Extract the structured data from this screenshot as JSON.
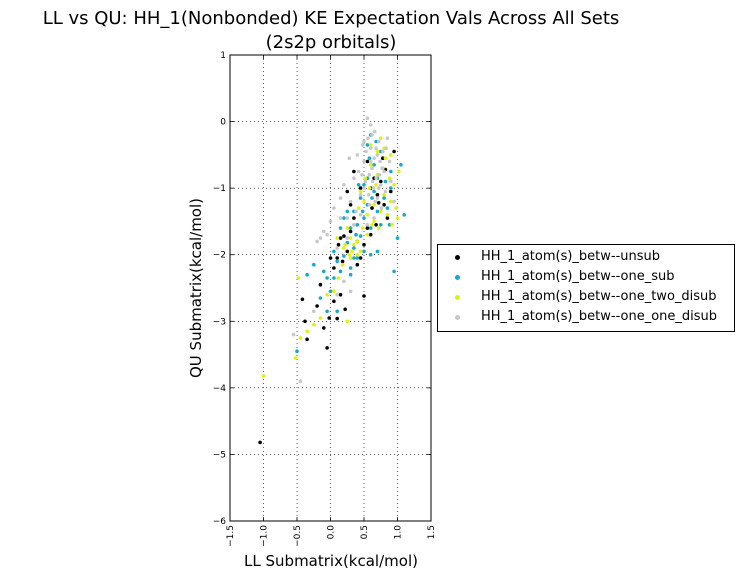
{
  "chart_data": {
    "type": "scatter",
    "title": "LL vs QU: HH_1(Nonbonded) KE Expectation Vals Across All Sets",
    "subtitle": "(2s2p orbitals)",
    "xlabel": "LL Submatrix(kcal/mol)",
    "ylabel": "QU Submatrix(kcal/mol)",
    "xlim": [
      -1.5,
      1.5
    ],
    "ylim": [
      -6,
      1
    ],
    "xticks": [
      -1.5,
      -1.0,
      -0.5,
      0.0,
      0.5,
      1.0,
      1.5
    ],
    "xtick_labels": [
      "−1.5",
      "−1.0",
      "−0.5",
      "0.0",
      "0.5",
      "1.0",
      "1.5"
    ],
    "yticks": [
      1,
      0,
      -1,
      -2,
      -3,
      -4,
      -5,
      -6
    ],
    "ytick_labels": [
      "1",
      "0",
      "−1",
      "−2",
      "−3",
      "−4",
      "−5",
      "−6"
    ],
    "grid": true,
    "grid_style": "dotted",
    "legend_position": "right-outside",
    "series": [
      {
        "name": "HH_1_atom(s)_betw--unsub",
        "color": "#000000",
        "points": [
          [
            -1.05,
            -4.82
          ],
          [
            -0.42,
            -2.67
          ],
          [
            -0.35,
            -3.27
          ],
          [
            -0.38,
            -3.0
          ],
          [
            -0.2,
            -2.77
          ],
          [
            -0.05,
            -3.4
          ],
          [
            -0.1,
            -3.1
          ],
          [
            -0.02,
            -2.95
          ],
          [
            0.05,
            -2.7
          ],
          [
            0.1,
            -2.96
          ],
          [
            0.15,
            -2.6
          ],
          [
            0.22,
            -2.82
          ],
          [
            0.5,
            -2.62
          ],
          [
            -0.15,
            -2.45
          ],
          [
            0.0,
            -2.05
          ],
          [
            0.05,
            -2.2
          ],
          [
            0.1,
            -2.05
          ],
          [
            0.15,
            -1.75
          ],
          [
            0.2,
            -1.72
          ],
          [
            0.25,
            -1.95
          ],
          [
            0.3,
            -1.65
          ],
          [
            0.35,
            -1.45
          ],
          [
            0.4,
            -1.8
          ],
          [
            0.45,
            -2.05
          ],
          [
            0.5,
            -1.85
          ],
          [
            0.55,
            -1.6
          ],
          [
            0.6,
            -1.7
          ],
          [
            0.62,
            -1.3
          ],
          [
            0.68,
            -1.55
          ],
          [
            0.7,
            -1.1
          ],
          [
            0.72,
            -1.22
          ],
          [
            0.75,
            -0.9
          ],
          [
            0.8,
            -1.25
          ],
          [
            0.82,
            -0.72
          ],
          [
            0.85,
            -1.45
          ],
          [
            0.9,
            -1.05
          ],
          [
            0.95,
            -0.45
          ],
          [
            0.3,
            -1.25
          ],
          [
            0.35,
            -0.75
          ],
          [
            0.45,
            -1.0
          ],
          [
            0.55,
            -0.6
          ],
          [
            0.6,
            -1.0
          ],
          [
            0.65,
            -0.85
          ],
          [
            0.25,
            -1.05
          ],
          [
            0.4,
            -2.15
          ],
          [
            0.18,
            -2.1
          ],
          [
            0.12,
            -1.85
          ],
          [
            0.78,
            -0.55
          ]
        ]
      },
      {
        "name": "HH_1_atom(s)_betw--one_sub",
        "color": "#17a9c9",
        "points": [
          [
            -0.5,
            -3.45
          ],
          [
            -0.35,
            -2.3
          ],
          [
            -0.25,
            -2.15
          ],
          [
            -0.1,
            -2.25
          ],
          [
            -0.05,
            -2.85
          ],
          [
            -0.15,
            -2.65
          ],
          [
            0.0,
            -2.55
          ],
          [
            0.05,
            -2.35
          ],
          [
            0.1,
            -2.1
          ],
          [
            0.1,
            -2.85
          ],
          [
            0.15,
            -2.25
          ],
          [
            0.2,
            -2.02
          ],
          [
            0.2,
            -1.45
          ],
          [
            0.25,
            -1.82
          ],
          [
            0.3,
            -2.2
          ],
          [
            0.3,
            -1.6
          ],
          [
            0.35,
            -1.9
          ],
          [
            0.35,
            -1.35
          ],
          [
            0.4,
            -1.55
          ],
          [
            0.4,
            -2.05
          ],
          [
            0.45,
            -1.15
          ],
          [
            0.45,
            -1.72
          ],
          [
            0.5,
            -1.45
          ],
          [
            0.5,
            -0.95
          ],
          [
            0.55,
            -1.25
          ],
          [
            0.55,
            -0.35
          ],
          [
            0.6,
            -0.2
          ],
          [
            0.6,
            -1.6
          ],
          [
            0.65,
            -0.65
          ],
          [
            0.65,
            -1.05
          ],
          [
            0.7,
            -0.85
          ],
          [
            0.7,
            -1.35
          ],
          [
            0.75,
            -1.55
          ],
          [
            0.75,
            -0.45
          ],
          [
            0.8,
            -1.15
          ],
          [
            0.82,
            -0.9
          ],
          [
            0.85,
            -1.3
          ],
          [
            0.9,
            -0.75
          ],
          [
            0.9,
            -1.0
          ],
          [
            0.95,
            -2.25
          ],
          [
            1.0,
            -1.75
          ],
          [
            1.05,
            -0.65
          ],
          [
            1.1,
            -1.4
          ],
          [
            0.25,
            -1.35
          ],
          [
            0.15,
            -1.6
          ],
          [
            0.05,
            -1.95
          ],
          [
            -0.05,
            -2.35
          ],
          [
            0.55,
            -0.85
          ],
          [
            0.6,
            -2.0
          ],
          [
            0.7,
            -1.95
          ],
          [
            0.3,
            -2.3
          ],
          [
            0.42,
            -0.95
          ],
          [
            0.48,
            -1.35
          ],
          [
            0.38,
            -1.7
          ],
          [
            0.58,
            -0.55
          ],
          [
            0.68,
            -0.3
          ],
          [
            0.88,
            -1.55
          ],
          [
            0.5,
            -1.95
          ],
          [
            0.35,
            -2.05
          ],
          [
            0.62,
            -1.15
          ]
        ]
      },
      {
        "name": "HH_1_atom(s)_betw--one_two_disub",
        "color": "#ddf20c",
        "points": [
          [
            -1.0,
            -3.82
          ],
          [
            -0.52,
            -3.55
          ],
          [
            -0.48,
            -2.35
          ],
          [
            -0.45,
            -3.25
          ],
          [
            -0.35,
            -3.15
          ],
          [
            -0.25,
            -3.05
          ],
          [
            -0.15,
            -2.95
          ],
          [
            -0.05,
            -2.6
          ],
          [
            0.05,
            -2.55
          ],
          [
            0.12,
            -2.35
          ],
          [
            0.18,
            -2.15
          ],
          [
            0.22,
            -1.85
          ],
          [
            0.25,
            -3.0
          ],
          [
            0.28,
            -2.0
          ],
          [
            0.3,
            -1.75
          ],
          [
            0.32,
            -1.95
          ],
          [
            0.35,
            -1.55
          ],
          [
            0.4,
            -1.8
          ],
          [
            0.42,
            -1.3
          ],
          [
            0.45,
            -1.05
          ],
          [
            0.48,
            -1.6
          ],
          [
            0.5,
            -1.2
          ],
          [
            0.52,
            -0.85
          ],
          [
            0.55,
            -1.4
          ],
          [
            0.58,
            -1.0
          ],
          [
            0.6,
            -0.65
          ],
          [
            0.62,
            -1.55
          ],
          [
            0.65,
            -1.25
          ],
          [
            0.68,
            -0.95
          ],
          [
            0.7,
            -0.45
          ],
          [
            0.72,
            -1.6
          ],
          [
            0.75,
            -0.25
          ],
          [
            0.78,
            -0.7
          ],
          [
            0.8,
            -1.1
          ],
          [
            0.82,
            -0.55
          ],
          [
            0.85,
            -1.4
          ],
          [
            0.88,
            -0.85
          ],
          [
            0.9,
            -1.2
          ],
          [
            0.92,
            -1.55
          ],
          [
            0.95,
            -0.95
          ],
          [
            0.98,
            -1.3
          ],
          [
            1.0,
            -1.45
          ],
          [
            1.02,
            -0.75
          ],
          [
            0.1,
            -1.75
          ],
          [
            0.35,
            -1.85
          ],
          [
            0.25,
            -1.6
          ],
          [
            0.45,
            -1.95
          ],
          [
            0.55,
            -1.7
          ],
          [
            0.65,
            -1.5
          ],
          [
            0.75,
            -1.35
          ],
          [
            0.4,
            -2.0
          ],
          [
            0.3,
            -2.05
          ],
          [
            0.2,
            -1.9
          ],
          [
            0.6,
            -0.35
          ],
          [
            0.7,
            -0.8
          ],
          [
            0.8,
            -0.4
          ],
          [
            0.9,
            -0.5
          ]
        ]
      },
      {
        "name": "HH_1_atom(s)_betw--one_one_disub",
        "color": "#c8c8c8",
        "points": [
          [
            -0.55,
            -3.2
          ],
          [
            -0.45,
            -3.9
          ],
          [
            -0.25,
            -2.85
          ],
          [
            -0.2,
            -1.8
          ],
          [
            -0.15,
            -1.75
          ],
          [
            -0.05,
            -1.7
          ],
          [
            0.0,
            -1.5
          ],
          [
            0.05,
            -1.3
          ],
          [
            0.1,
            -1.9
          ],
          [
            0.15,
            -1.15
          ],
          [
            0.2,
            -0.95
          ],
          [
            0.25,
            -1.45
          ],
          [
            0.28,
            -0.55
          ],
          [
            0.3,
            -1.2
          ],
          [
            0.35,
            -0.85
          ],
          [
            0.38,
            -1.35
          ],
          [
            0.4,
            -0.5
          ],
          [
            0.42,
            -0.75
          ],
          [
            0.45,
            -1.1
          ],
          [
            0.48,
            -0.35
          ],
          [
            0.5,
            -0.6
          ],
          [
            0.52,
            -0.9
          ],
          [
            0.55,
            0.05
          ],
          [
            0.56,
            -0.25
          ],
          [
            0.58,
            -1.25
          ],
          [
            0.6,
            -0.4
          ],
          [
            0.62,
            -0.7
          ],
          [
            0.64,
            -1.0
          ],
          [
            0.65,
            -0.55
          ],
          [
            0.66,
            -0.15
          ],
          [
            0.68,
            -0.85
          ],
          [
            0.7,
            -1.15
          ],
          [
            0.72,
            -0.3
          ],
          [
            0.74,
            -0.6
          ],
          [
            0.75,
            -0.95
          ],
          [
            0.76,
            -1.3
          ],
          [
            0.78,
            -0.45
          ],
          [
            0.8,
            -0.75
          ],
          [
            0.82,
            -1.05
          ],
          [
            0.85,
            -0.25
          ],
          [
            0.88,
            -0.6
          ],
          [
            0.9,
            -0.9
          ],
          [
            0.95,
            -1.2
          ],
          [
            0.35,
            -1.55
          ],
          [
            0.25,
            -1.75
          ],
          [
            0.15,
            -1.45
          ],
          [
            0.45,
            -1.4
          ],
          [
            0.55,
            -1.55
          ],
          [
            0.6,
            -0.05
          ],
          [
            0.7,
            -0.5
          ],
          [
            0.65,
            -1.45
          ],
          [
            0.5,
            -1.0
          ],
          [
            0.58,
            -0.8
          ],
          [
            0.62,
            -0.2
          ],
          [
            0.72,
            -1.0
          ],
          [
            0.68,
            -0.4
          ],
          [
            0.53,
            -0.45
          ],
          [
            0.47,
            -0.8
          ],
          [
            0.77,
            -0.7
          ],
          [
            0.57,
            -1.1
          ],
          [
            0.63,
            -0.9
          ],
          [
            0.67,
            -1.2
          ],
          [
            0.73,
            -0.8
          ],
          [
            0.83,
            -0.4
          ],
          [
            0.6,
            -0.6
          ],
          [
            0.5,
            -0.3
          ],
          [
            -0.1,
            -1.65
          ],
          [
            0.1,
            -2.6
          ],
          [
            0.2,
            -2.4
          ],
          [
            0.3,
            -2.55
          ]
        ]
      }
    ]
  }
}
